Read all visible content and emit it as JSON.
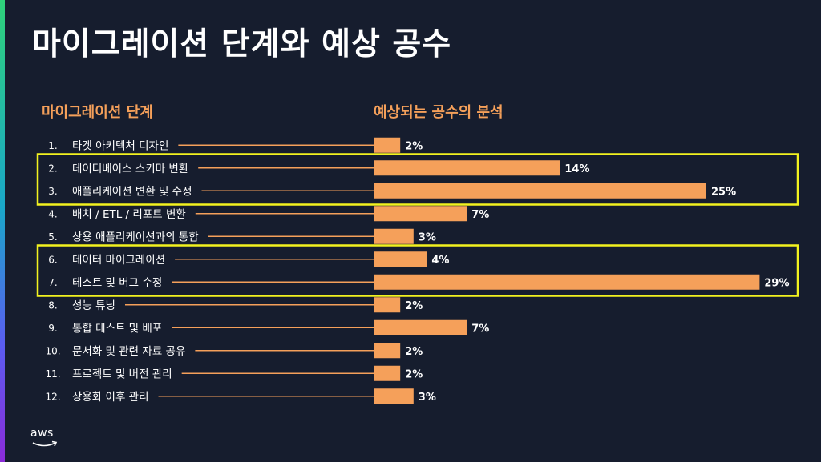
{
  "title": "마이그레이션 단계와 예상 공수",
  "headers": {
    "left": "마이그레이션 단계",
    "right": "예상되는 공수의 분석"
  },
  "logo_text": "aws",
  "colors": {
    "background": "#161d2e",
    "bar": "#f5a05a",
    "heading": "#f5a05a",
    "highlight_box": "#f2f21f",
    "text": "#ffffff"
  },
  "chart_data": {
    "type": "bar",
    "orientation": "horizontal",
    "categories": [
      "타겟 아키텍처 디자인",
      "데이터베이스 스키마 변환",
      "애플리케이션 변환 및 수정",
      "배치 / ETL / 리포트 변환",
      "상용 애플리케이션과의 통합",
      "데이터 마이그레이션",
      "테스트 및 버그 수정",
      "성능 튜닝",
      "통합 테스트 및 배포",
      "문서화 및 관련 자료 공유",
      "프로젝트 및 버전 관리",
      "상용화 이후 관리"
    ],
    "numbers": [
      "1.",
      "2.",
      "3.",
      "4.",
      "5.",
      "6.",
      "7.",
      "8.",
      "9.",
      "10.",
      "11.",
      "12."
    ],
    "values": [
      2,
      14,
      25,
      7,
      3,
      4,
      29,
      2,
      7,
      2,
      2,
      3
    ],
    "value_labels": [
      "2%",
      "14%",
      "25%",
      "7%",
      "3%",
      "4%",
      "29%",
      "2%",
      "7%",
      "2%",
      "2%",
      "3%"
    ],
    "unit": "%",
    "highlight_groups": [
      [
        2,
        3
      ],
      [
        6,
        7
      ]
    ]
  }
}
